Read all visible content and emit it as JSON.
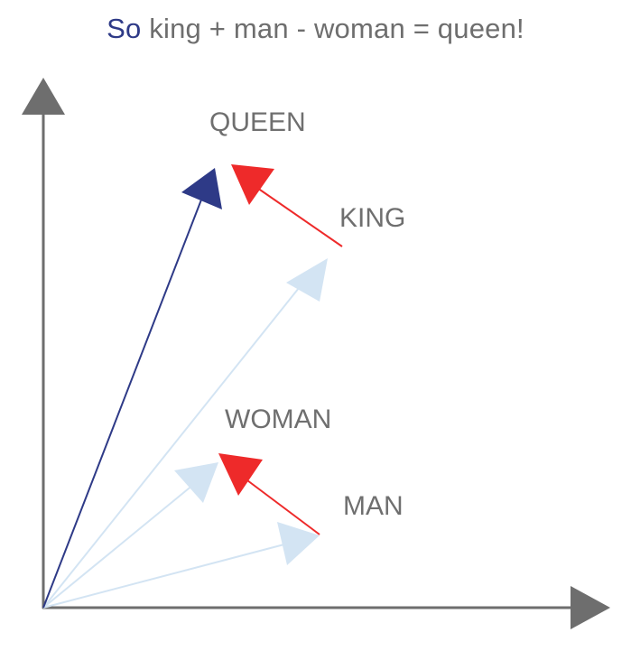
{
  "title": {
    "highlight": "So",
    "rest": " king + man - woman = queen!"
  },
  "labels": {
    "queen": "QUEEN",
    "king": "KING",
    "woman": "WOMAN",
    "man": "MAN"
  },
  "colors": {
    "axis": "#6E6E6E",
    "light_vector": "#D3E4F3",
    "difference_vector": "#EE2A2A",
    "result_vector": "#2E3A87",
    "title_highlight": "#2E3A87",
    "text": "#6F6F6F"
  }
}
